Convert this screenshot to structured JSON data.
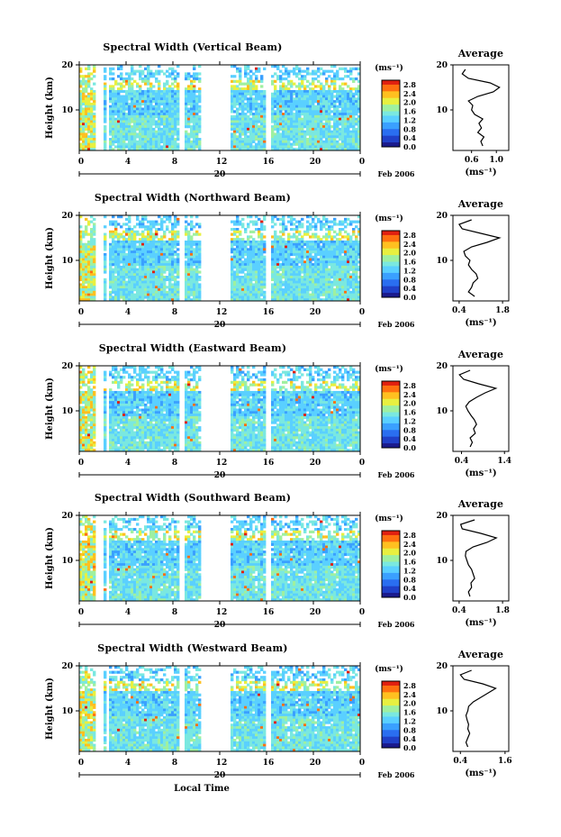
{
  "common": {
    "ylabel": "Height (km)",
    "cbar_unit": "(ms⁻¹)",
    "avg_title": "Average",
    "avg_unit": "(ms⁻¹)",
    "day_label": "20",
    "date_label": "Feb 2006",
    "xlabel": "Local Time",
    "x_ticks": [
      "0",
      "4",
      "8",
      "12",
      "16",
      "20",
      "0"
    ],
    "y_ticks": [
      "20",
      "10"
    ],
    "cbar_ticks": [
      "2.8",
      "2.4",
      "2.0",
      "1.6",
      "1.2",
      "0.8",
      "0.4",
      "0.0"
    ],
    "colors": {
      "colormap": [
        "#1a1a8c",
        "#2040c8",
        "#2a6ef0",
        "#3aa0ff",
        "#5ad0ff",
        "#7ae8e0",
        "#9ff0a0",
        "#e8f040",
        "#ffc020",
        "#ff7010",
        "#e02010"
      ],
      "background": "#ffffff",
      "gap": "#ffffff"
    }
  },
  "chart_data": [
    {
      "type": "heatmap",
      "title": "Spectral Width (Vertical Beam)",
      "xlabel": "Local Time",
      "ylabel": "Height (km)",
      "xlim": [
        0,
        24
      ],
      "ylim": [
        1,
        20
      ],
      "clim": [
        0.0,
        3.0
      ],
      "data_gaps_hours": [
        [
          1.5,
          2.0
        ],
        [
          2.2,
          2.5
        ],
        [
          8.6,
          8.9
        ],
        [
          10.5,
          13.0
        ],
        [
          16.0,
          16.3
        ]
      ],
      "average": {
        "title": "Average",
        "xlim": [
          0.3,
          1.2
        ],
        "x_ticks": [
          "0.6",
          "1.0"
        ],
        "heights": [
          2,
          3,
          4,
          5,
          6,
          7,
          8,
          9,
          10,
          11,
          12,
          13,
          14,
          15,
          16,
          17,
          18,
          19
        ],
        "values": [
          0.78,
          0.75,
          0.8,
          0.7,
          0.76,
          0.72,
          0.78,
          0.65,
          0.6,
          0.62,
          0.55,
          0.7,
          0.95,
          1.05,
          0.9,
          0.55,
          0.45,
          0.5
        ]
      }
    },
    {
      "type": "heatmap",
      "title": "Spectral Width (Northward Beam)",
      "xlabel": "Local Time",
      "ylabel": "Height (km)",
      "xlim": [
        0,
        24
      ],
      "ylim": [
        1,
        20
      ],
      "clim": [
        0.0,
        3.0
      ],
      "data_gaps_hours": [
        [
          1.5,
          2.0
        ],
        [
          2.2,
          2.5
        ],
        [
          8.6,
          8.9
        ],
        [
          10.5,
          13.0
        ],
        [
          16.0,
          16.3
        ]
      ],
      "average": {
        "title": "Average",
        "xlim": [
          0.2,
          2.0
        ],
        "x_ticks": [
          "0.4",
          "1.8"
        ],
        "heights": [
          2,
          3,
          4,
          5,
          6,
          7,
          8,
          9,
          10,
          11,
          12,
          13,
          14,
          15,
          16,
          17,
          18,
          19
        ],
        "values": [
          0.9,
          0.7,
          0.8,
          0.85,
          1.0,
          0.95,
          0.8,
          0.7,
          0.75,
          0.6,
          0.55,
          0.8,
          1.3,
          1.7,
          1.1,
          0.5,
          0.4,
          0.8
        ]
      }
    },
    {
      "type": "heatmap",
      "title": "Spectral Width (Eastward Beam)",
      "xlabel": "Local Time",
      "ylabel": "Height (km)",
      "xlim": [
        0,
        24
      ],
      "ylim": [
        1,
        20
      ],
      "clim": [
        0.0,
        3.0
      ],
      "data_gaps_hours": [
        [
          1.5,
          2.0
        ],
        [
          2.2,
          2.5
        ],
        [
          8.6,
          8.9
        ],
        [
          10.5,
          13.0
        ],
        [
          16.0,
          16.3
        ]
      ],
      "average": {
        "title": "Average",
        "xlim": [
          0.2,
          1.5
        ],
        "x_ticks": [
          "0.4",
          "1.4"
        ],
        "heights": [
          2,
          3,
          4,
          5,
          6,
          7,
          8,
          9,
          10,
          11,
          12,
          13,
          14,
          15,
          16,
          17,
          18,
          19
        ],
        "values": [
          0.6,
          0.65,
          0.6,
          0.72,
          0.68,
          0.75,
          0.7,
          0.62,
          0.55,
          0.5,
          0.58,
          0.75,
          0.95,
          1.2,
          0.8,
          0.45,
          0.35,
          0.6
        ]
      }
    },
    {
      "type": "heatmap",
      "title": "Spectral Width (Southward Beam)",
      "xlabel": "Local Time",
      "ylabel": "Height (km)",
      "xlim": [
        0,
        24
      ],
      "ylim": [
        1,
        20
      ],
      "clim": [
        0.0,
        3.0
      ],
      "data_gaps_hours": [
        [
          1.5,
          2.0
        ],
        [
          2.2,
          2.5
        ],
        [
          8.6,
          8.9
        ],
        [
          10.5,
          13.0
        ],
        [
          16.0,
          16.3
        ]
      ],
      "average": {
        "title": "Average",
        "xlim": [
          0.2,
          2.0
        ],
        "x_ticks": [
          "0.4",
          "1.8"
        ],
        "heights": [
          2,
          3,
          4,
          5,
          6,
          7,
          8,
          9,
          10,
          11,
          12,
          13,
          14,
          15,
          16,
          17,
          18,
          19
        ],
        "values": [
          0.75,
          0.7,
          0.8,
          0.78,
          0.9,
          0.85,
          0.8,
          0.7,
          0.65,
          0.6,
          0.62,
          0.85,
          1.3,
          1.6,
          1.1,
          0.5,
          0.45,
          0.9
        ]
      }
    },
    {
      "type": "heatmap",
      "title": "Spectral Width (Westward Beam)",
      "xlabel": "Local Time",
      "ylabel": "Height (km)",
      "xlim": [
        0,
        24
      ],
      "ylim": [
        1,
        20
      ],
      "clim": [
        0.0,
        3.0
      ],
      "data_gaps_hours": [
        [
          1.5,
          2.0
        ],
        [
          2.2,
          2.5
        ],
        [
          8.6,
          8.9
        ],
        [
          10.5,
          13.0
        ],
        [
          16.0,
          16.3
        ]
      ],
      "average": {
        "title": "Average",
        "xlim": [
          0.2,
          1.7
        ],
        "x_ticks": [
          "0.4",
          "1.6"
        ],
        "heights": [
          2,
          3,
          4,
          5,
          6,
          7,
          8,
          9,
          10,
          11,
          12,
          13,
          14,
          15,
          16,
          17,
          18,
          19
        ],
        "values": [
          0.6,
          0.55,
          0.6,
          0.65,
          0.6,
          0.62,
          0.58,
          0.55,
          0.6,
          0.62,
          0.75,
          0.95,
          1.15,
          1.35,
          1.0,
          0.5,
          0.4,
          0.7
        ]
      }
    }
  ]
}
